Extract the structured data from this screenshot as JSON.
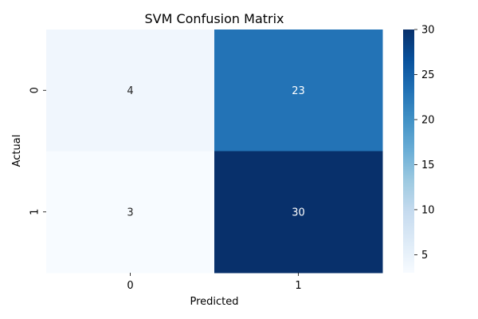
{
  "chart_data": {
    "type": "heatmap",
    "title": "SVM Confusion Matrix",
    "xlabel": "Predicted",
    "ylabel": "Actual",
    "x_categories": [
      "0",
      "1"
    ],
    "y_categories": [
      "0",
      "1"
    ],
    "values": [
      [
        4,
        23
      ],
      [
        3,
        30
      ]
    ],
    "colorbar": {
      "range": [
        3,
        30
      ],
      "ticks": [
        5,
        10,
        15,
        20,
        25,
        30
      ],
      "colormap": "Blues",
      "colors": [
        "#f7fbff",
        "#deebf7",
        "#c6dbef",
        "#9ecae1",
        "#6baed6",
        "#4292c6",
        "#2171b5",
        "#08519c",
        "#08306b"
      ]
    },
    "cell_text_colors": {
      "light": "#262626",
      "dark": "#ffffff"
    }
  }
}
